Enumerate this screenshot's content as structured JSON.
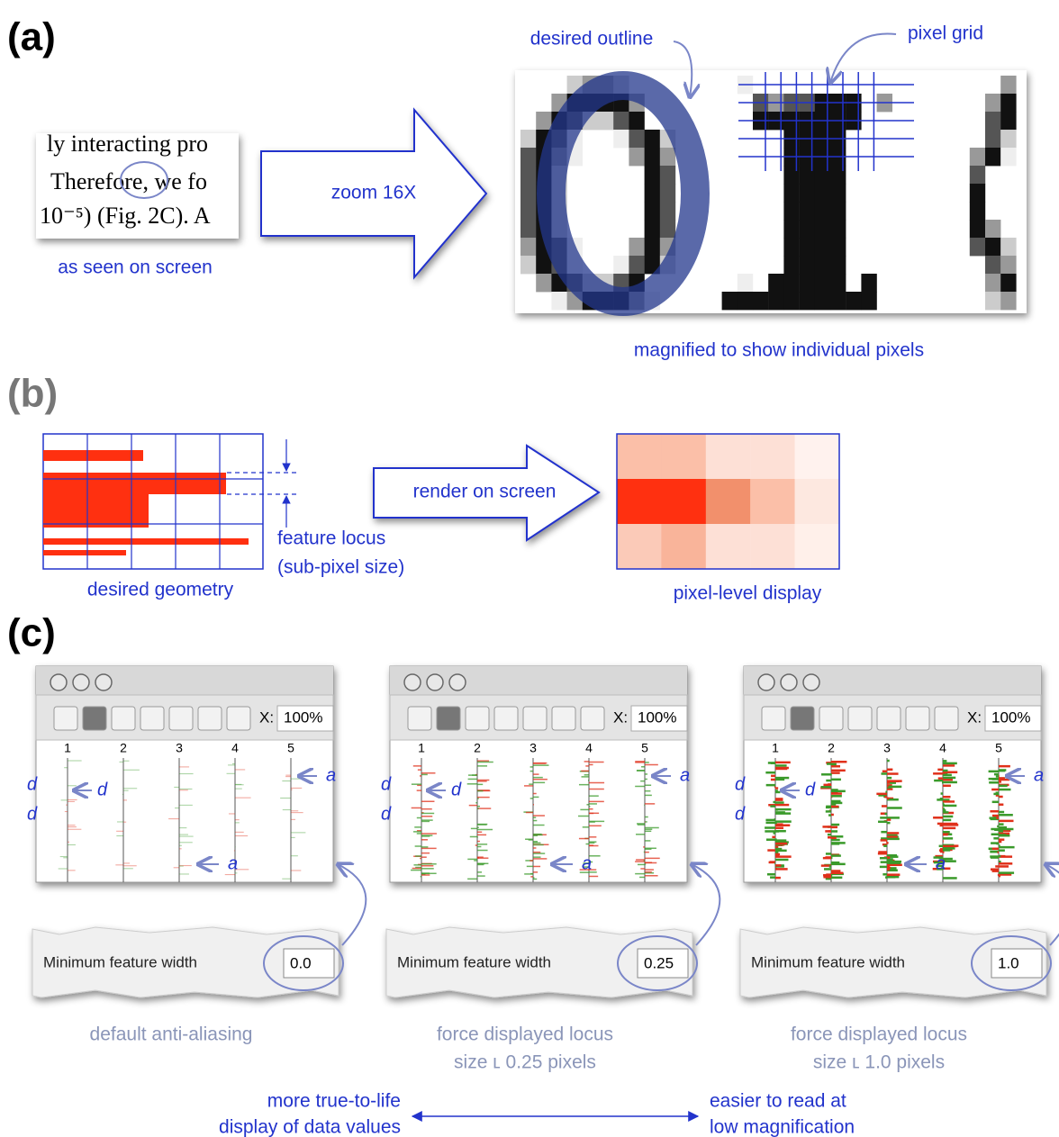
{
  "panels": {
    "a": {
      "label": "(a)",
      "screen_lines": [
        "ly interacting pro",
        "Therefore, we fo",
        "10⁻⁵) (Fig. 2C).  A"
      ],
      "seen_caption": "as seen on screen",
      "zoom": "zoom 16X",
      "desired_outline": "desired outline",
      "pixel_grid": "pixel grid",
      "magnified_caption": "magnified to show individual pixels"
    },
    "b": {
      "label": "(b)",
      "locus": [
        "feature locus",
        "(sub-pixel size)"
      ],
      "geometry_caption": "desired geometry",
      "render": "render on screen",
      "display_caption": "pixel-level display"
    },
    "c": {
      "label": "(c)",
      "windows": [
        {
          "zoom_label": "X:",
          "zoom_value": "100%",
          "tracks": [
            "1",
            "2",
            "3",
            "4",
            "5"
          ],
          "annotations": [
            "d",
            "d",
            "d",
            "a",
            "a"
          ],
          "field_label": "Minimum feature width",
          "field_value": "0.0",
          "caption": [
            "default anti-aliasing"
          ]
        },
        {
          "zoom_label": "X:",
          "zoom_value": "100%",
          "tracks": [
            "1",
            "2",
            "3",
            "4",
            "5"
          ],
          "annotations": [
            "d",
            "d",
            "d",
            "a",
            "a"
          ],
          "field_label": "Minimum feature width",
          "field_value": "0.25",
          "caption": [
            "force displayed locus",
            "size ʟ 0.25 pixels"
          ]
        },
        {
          "zoom_label": "X:",
          "zoom_value": "100%",
          "tracks": [
            "1",
            "2",
            "3",
            "4",
            "5"
          ],
          "annotations": [
            "d",
            "d",
            "d",
            "a",
            "a"
          ],
          "field_label": "Minimum feature width",
          "field_value": "1.0",
          "caption": [
            "force displayed locus",
            "size ʟ 1.0 pixels"
          ]
        }
      ],
      "left_end": [
        "more true-to-life",
        "display of data values"
      ],
      "right_end": [
        "easier to read at",
        "low magnification"
      ]
    }
  }
}
